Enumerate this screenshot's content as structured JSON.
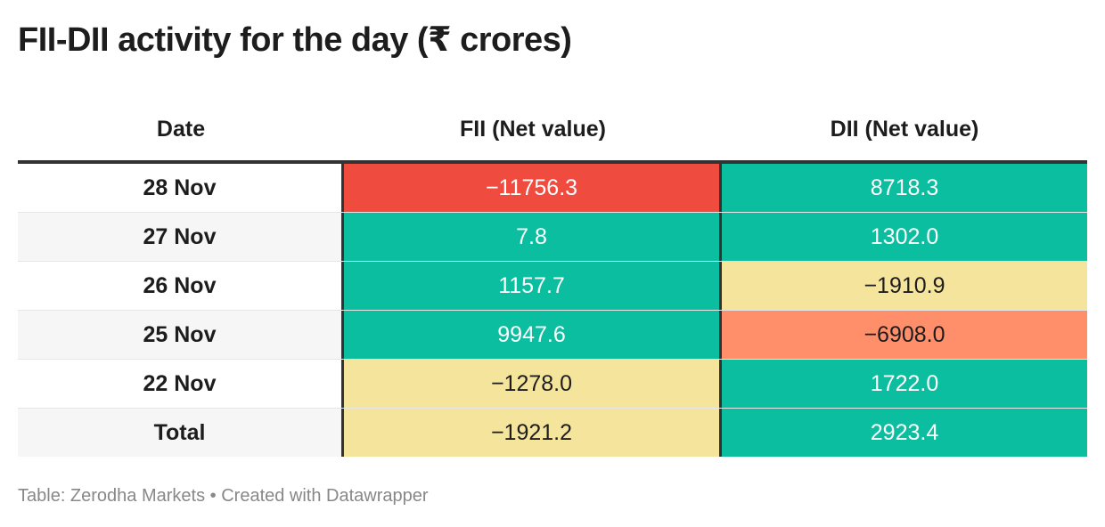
{
  "title": "FII-DII activity for the day (₹ crores)",
  "columns": [
    "Date",
    "FII (Net value)",
    "DII (Net value)"
  ],
  "colors": {
    "positive": "#0abe9f",
    "small_negative": "#f5e49b",
    "medium_negative": "#ff8f6b",
    "large_negative": "#f04b3f"
  },
  "rows": [
    {
      "date": "28 Nov",
      "fii": "−11756.3",
      "dii": "8718.3"
    },
    {
      "date": "27 Nov",
      "fii": "7.8",
      "dii": "1302.0"
    },
    {
      "date": "26 Nov",
      "fii": "1157.7",
      "dii": "−1910.9"
    },
    {
      "date": "25 Nov",
      "fii": "9947.6",
      "dii": "−6908.0"
    },
    {
      "date": "22 Nov",
      "fii": "−1278.0",
      "dii": "1722.0"
    },
    {
      "date": "Total",
      "fii": "−1921.2",
      "dii": "2923.4"
    }
  ],
  "footer": "Table: Zerodha Markets • Created with Datawrapper",
  "chart_data": {
    "type": "table",
    "columns": [
      "Date",
      "FII (Net value)",
      "DII (Net value)"
    ],
    "rows": [
      [
        "28 Nov",
        -11756.3,
        8718.3
      ],
      [
        "27 Nov",
        7.8,
        1302.0
      ],
      [
        "26 Nov",
        1157.7,
        -1910.9
      ],
      [
        "25 Nov",
        9947.6,
        -6908.0
      ],
      [
        "22 Nov",
        -1278.0,
        1722.0
      ],
      [
        "Total",
        -1921.2,
        2923.4
      ]
    ]
  }
}
